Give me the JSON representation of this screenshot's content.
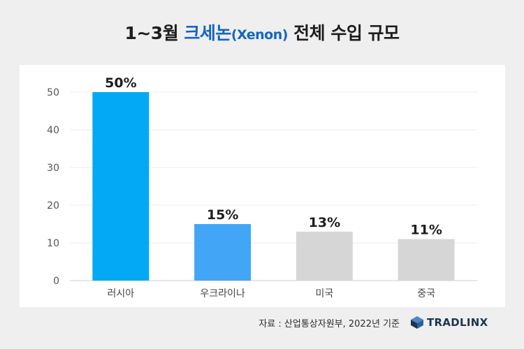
{
  "title": {
    "prefix": "1~3월 ",
    "highlight": "크세논",
    "highlight_paren": "(Xenon)",
    "suffix": " 전체 수입 규모"
  },
  "colors": {
    "highlight": "#1565c0",
    "bar_primary": "#03a9f4",
    "bar_secondary": "#42a5f5",
    "bar_other": "#d6d6d6"
  },
  "chart_data": {
    "type": "bar",
    "title": "1~3월 크세논(Xenon) 전체 수입 규모",
    "xlabel": "",
    "ylabel": "",
    "categories": [
      "러시아",
      "우크라이나",
      "미국",
      "중국"
    ],
    "values": [
      50,
      15,
      13,
      11
    ],
    "data_labels": [
      "50%",
      "15%",
      "13%",
      "11%"
    ],
    "bar_colors": [
      "#03a9f4",
      "#42a5f5",
      "#d6d6d6",
      "#d6d6d6"
    ],
    "ylim": [
      0,
      50
    ],
    "yticks": [
      0,
      10,
      20,
      30,
      40,
      50
    ],
    "grid": true,
    "legend": "none"
  },
  "footer": {
    "source": "자료 : 산업통상자원부, 2022년 기준",
    "logo_text": "TRADLINX",
    "logo_icon": "cube-logo-icon"
  }
}
